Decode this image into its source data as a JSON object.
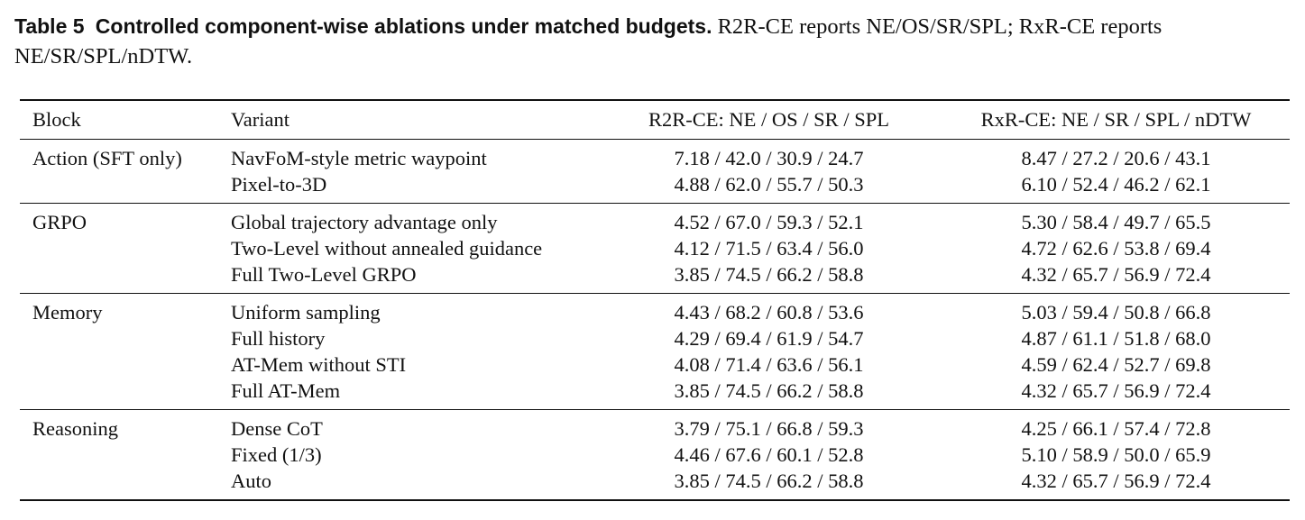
{
  "caption": {
    "label": "Table 5",
    "bold_text": "Controlled component-wise ablations under matched budgets.",
    "text": " R2R-CE reports NE/OS/SR/SPL; RxR-CE reports NE/SR/SPL/nDTW."
  },
  "table": {
    "headers": [
      "Block",
      "Variant",
      "R2R-CE: NE / OS / SR / SPL",
      "RxR-CE: NE / SR / SPL / nDTW"
    ],
    "groups": [
      {
        "block": "Action (SFT only)",
        "rows": [
          {
            "variant": "NavFoM-style metric waypoint",
            "r2r": "7.18 / 42.0 / 30.9 / 24.7",
            "rxr": "8.47 / 27.2 / 20.6 / 43.1"
          },
          {
            "variant": "Pixel-to-3D",
            "r2r": "4.88 / 62.0 / 55.7 / 50.3",
            "rxr": "6.10 / 52.4 / 46.2 / 62.1"
          }
        ]
      },
      {
        "block": "GRPO",
        "rows": [
          {
            "variant": "Global trajectory advantage only",
            "r2r": "4.52 / 67.0 / 59.3 / 52.1",
            "rxr": "5.30 / 58.4 / 49.7 / 65.5"
          },
          {
            "variant": "Two-Level without annealed guidance",
            "r2r": "4.12 / 71.5 / 63.4 / 56.0",
            "rxr": "4.72 / 62.6 / 53.8 / 69.4"
          },
          {
            "variant": "Full Two-Level GRPO",
            "r2r": "3.85 / 74.5 / 66.2 / 58.8",
            "rxr": "4.32 / 65.7 / 56.9 / 72.4"
          }
        ]
      },
      {
        "block": "Memory",
        "rows": [
          {
            "variant": "Uniform sampling",
            "r2r": "4.43 / 68.2 / 60.8 / 53.6",
            "rxr": "5.03 / 59.4 / 50.8 / 66.8"
          },
          {
            "variant": "Full history",
            "r2r": "4.29 / 69.4 / 61.9 / 54.7",
            "rxr": "4.87 / 61.1 / 51.8 / 68.0"
          },
          {
            "variant": "AT-Mem without STI",
            "r2r": "4.08 / 71.4 / 63.6 / 56.1",
            "rxr": "4.59 / 62.4 / 52.7 / 69.8"
          },
          {
            "variant": "Full AT-Mem",
            "r2r": "3.85 / 74.5 / 66.2 / 58.8",
            "rxr": "4.32 / 65.7 / 56.9 / 72.4"
          }
        ]
      },
      {
        "block": "Reasoning",
        "rows": [
          {
            "variant": "Dense CoT",
            "r2r": "3.79 / 75.1 / 66.8 / 59.3",
            "rxr": "4.25 / 66.1 / 57.4 / 72.8"
          },
          {
            "variant": "Fixed (1/3)",
            "r2r": "4.46 / 67.6 / 60.1 / 52.8",
            "rxr": "5.10 / 58.9 / 50.0 / 65.9"
          },
          {
            "variant": "Auto",
            "r2r": "3.85 / 74.5 / 66.2 / 58.8",
            "rxr": "4.32 / 65.7 / 56.9 / 72.4"
          }
        ]
      }
    ]
  }
}
